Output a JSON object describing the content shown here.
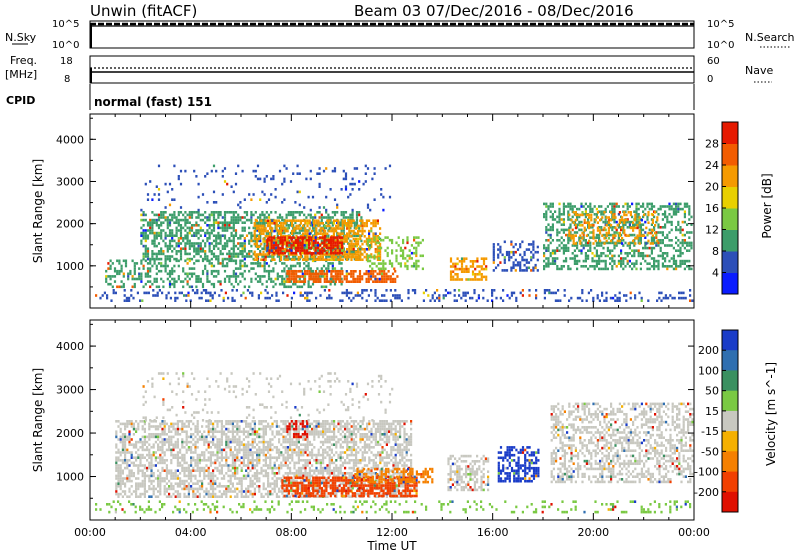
{
  "header": {
    "station": "Unwin (fitACF)",
    "beam_info": "Beam 03  07/Dec/2016 - 08/Dec/2016"
  },
  "top_panels": {
    "nsky": {
      "label": "N.Sky",
      "ticks": [
        "10^5",
        "10^0"
      ],
      "right_label": "N.Search",
      "right_ticks": [
        "10^5",
        "10^0"
      ]
    },
    "freq": {
      "label_line1": "Freq.",
      "label_line2": "[MHz]",
      "ticks": [
        "18",
        "8"
      ],
      "right_label": "Nave",
      "right_ticks": [
        "60",
        "0"
      ]
    },
    "cpid": {
      "label": "CPID",
      "value": "normal (fast) 151"
    }
  },
  "chart_data": [
    {
      "type": "heatmap",
      "title": "",
      "xlabel": "",
      "ylabel": "Slant Range [km]",
      "x_range_hours": [
        0,
        24
      ],
      "ylim": [
        0,
        4600
      ],
      "yticks": [
        "1000",
        "2000",
        "3000",
        "4000"
      ],
      "colorbar": {
        "label": "Power [dB]",
        "ticks": [
          "4",
          "8",
          "12",
          "16",
          "20",
          "24",
          "28"
        ],
        "colors": [
          "#0a1cff",
          "#2c4fb8",
          "#3c9d6a",
          "#7ac943",
          "#e8d000",
          "#f59a00",
          "#f25c00",
          "#e61a00"
        ]
      },
      "regions": [
        {
          "t0": 2.0,
          "t1": 10.8,
          "r0": 1150,
          "r1": 2300,
          "level": "#3c9d6a",
          "density": 0.55
        },
        {
          "t0": 0.6,
          "t1": 10.0,
          "r0": 500,
          "r1": 1150,
          "level": "#3c9d6a",
          "density": 0.35
        },
        {
          "t0": 6.5,
          "t1": 11.5,
          "r0": 1150,
          "r1": 2100,
          "level": "#f59a00",
          "density": 0.6
        },
        {
          "t0": 7.0,
          "t1": 10.0,
          "r0": 1300,
          "r1": 1700,
          "level": "#e61a00",
          "density": 0.7
        },
        {
          "t0": 7.8,
          "t1": 12.2,
          "r0": 600,
          "r1": 900,
          "level": "#f25c00",
          "density": 0.7
        },
        {
          "t0": 11.0,
          "t1": 13.2,
          "r0": 900,
          "r1": 1700,
          "level": "#7ac943",
          "density": 0.4
        },
        {
          "t0": 14.3,
          "t1": 15.7,
          "r0": 700,
          "r1": 1200,
          "level": "#f59a00",
          "density": 0.55
        },
        {
          "t0": 16.0,
          "t1": 17.8,
          "r0": 900,
          "r1": 1600,
          "level": "#2c4fb8",
          "density": 0.4
        },
        {
          "t0": 18.0,
          "t1": 23.9,
          "r0": 900,
          "r1": 2500,
          "level": "#3c9d6a",
          "density": 0.45
        },
        {
          "t0": 19.0,
          "t1": 22.5,
          "r0": 1500,
          "r1": 2300,
          "level": "#f59a00",
          "density": 0.3
        },
        {
          "t0": 0.2,
          "t1": 23.9,
          "r0": 200,
          "r1": 450,
          "level": "#2c4fb8",
          "density": 0.25
        },
        {
          "t0": 2.0,
          "t1": 12.0,
          "r0": 2300,
          "r1": 3400,
          "level": "#2c4fb8",
          "density": 0.08
        }
      ]
    },
    {
      "type": "heatmap",
      "title": "",
      "xlabel": "Time UT",
      "ylabel": "Slant Range [km]",
      "x_range_hours": [
        0,
        24
      ],
      "ylim": [
        0,
        4600
      ],
      "yticks": [
        "1000",
        "2000",
        "3000",
        "4000"
      ],
      "xticks": [
        "00:00",
        "04:00",
        "08:00",
        "12:00",
        "16:00",
        "20:00",
        "00:00"
      ],
      "colorbar": {
        "label": "Velocity [m s^-1]",
        "ticks": [
          "200",
          "100",
          "50",
          "15",
          "-15",
          "-50",
          "-100",
          "-200"
        ],
        "colors": [
          "#1a3cc8",
          "#2f6fb0",
          "#3a9060",
          "#7ac943",
          "#c8c8c0",
          "#f5b000",
          "#f58000",
          "#f24000",
          "#e01000"
        ]
      },
      "regions": [
        {
          "t0": 1.0,
          "t1": 12.8,
          "r0": 550,
          "r1": 2300,
          "level": "#c8c8c0",
          "density": 0.6
        },
        {
          "t0": 7.6,
          "t1": 13.0,
          "r0": 580,
          "r1": 1000,
          "level": "#f24000",
          "density": 0.7
        },
        {
          "t0": 10.5,
          "t1": 13.6,
          "r0": 900,
          "r1": 1200,
          "level": "#f58000",
          "density": 0.5
        },
        {
          "t0": 7.8,
          "t1": 8.6,
          "r0": 1900,
          "r1": 2300,
          "level": "#e01000",
          "density": 0.55
        },
        {
          "t0": 14.2,
          "t1": 15.8,
          "r0": 700,
          "r1": 1500,
          "level": "#c8c8c0",
          "density": 0.5
        },
        {
          "t0": 16.2,
          "t1": 17.8,
          "r0": 900,
          "r1": 1700,
          "level": "#1a3cc8",
          "density": 0.55
        },
        {
          "t0": 18.3,
          "t1": 23.9,
          "r0": 900,
          "r1": 2700,
          "level": "#c8c8c0",
          "density": 0.45
        },
        {
          "t0": 0.2,
          "t1": 23.9,
          "r0": 200,
          "r1": 450,
          "level": "#7ac943",
          "density": 0.2
        },
        {
          "t0": 2.0,
          "t1": 12.0,
          "r0": 2300,
          "r1": 3400,
          "level": "#c8c8c0",
          "density": 0.08
        }
      ]
    }
  ]
}
